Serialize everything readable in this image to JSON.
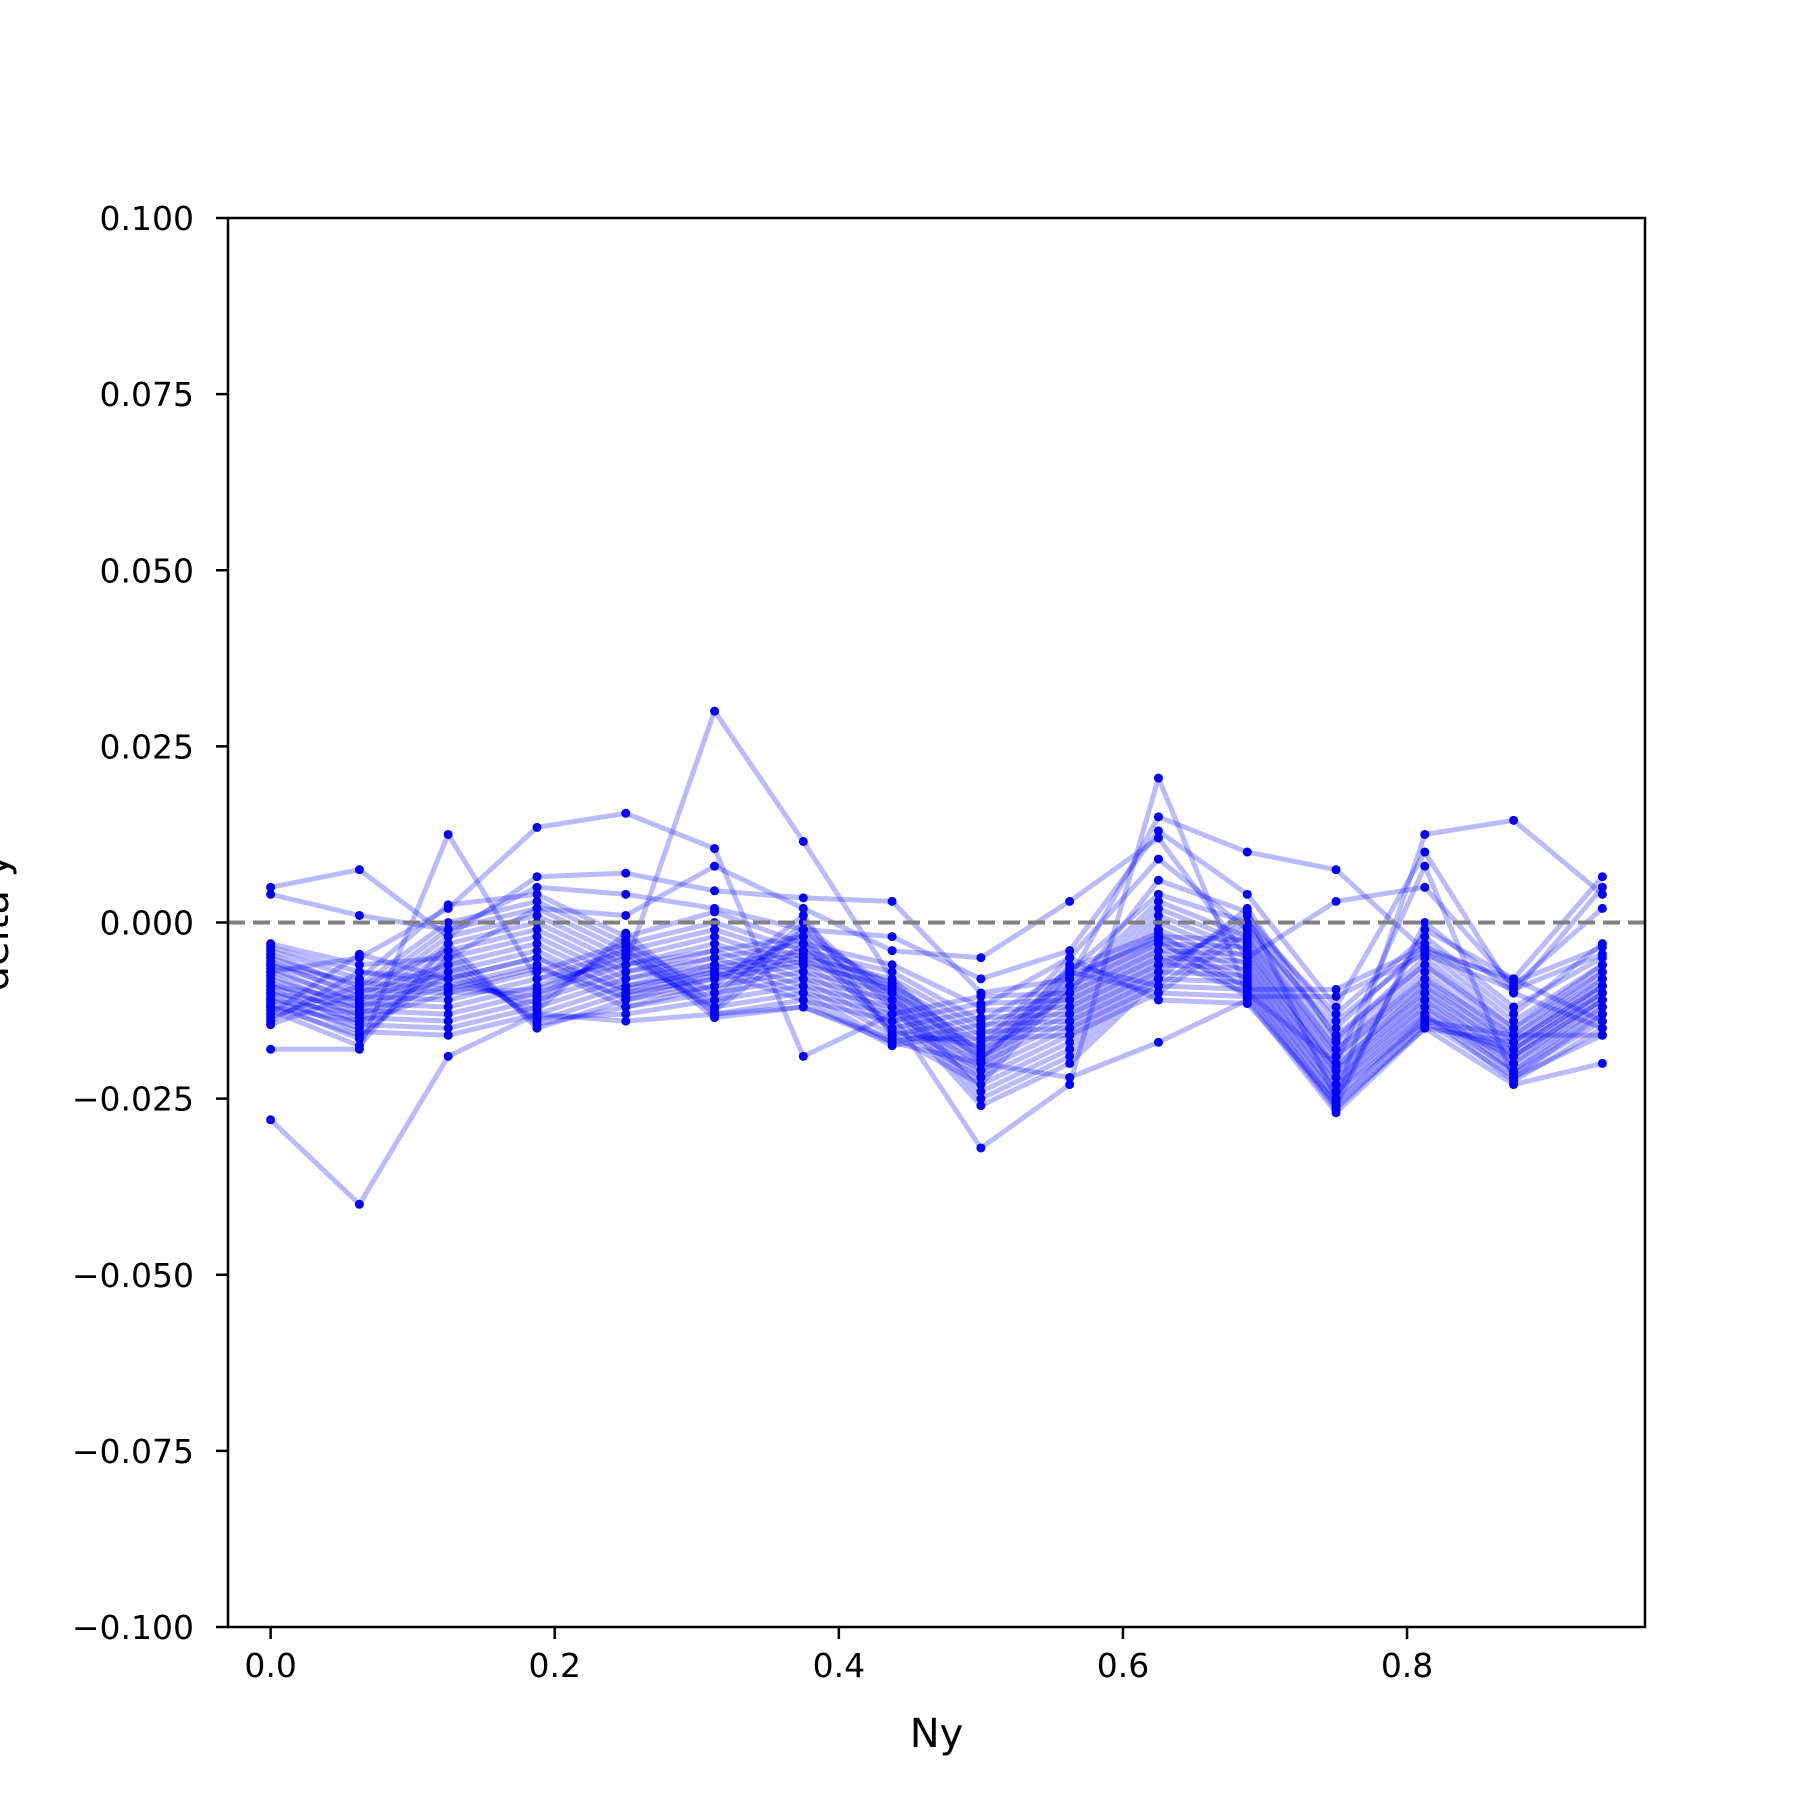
{
  "chart_data": {
    "type": "line",
    "title": "",
    "xlabel": "Ny",
    "ylabel": "delta y",
    "xlim": [
      -0.03,
      0.9675
    ],
    "ylim": [
      -0.1,
      0.1
    ],
    "xticks": [
      0.0,
      0.2,
      0.4,
      0.6,
      0.8
    ],
    "xtick_labels": [
      "0.0",
      "0.2",
      "0.4",
      "0.6",
      "0.8"
    ],
    "yticks": [
      -0.1,
      -0.075,
      -0.05,
      -0.025,
      0.0,
      0.025,
      0.05,
      0.075,
      0.1
    ],
    "ytick_labels": [
      "−0.100",
      "−0.075",
      "−0.050",
      "−0.025",
      "0.000",
      "0.025",
      "0.050",
      "0.075",
      "0.100"
    ],
    "reference_line": {
      "y": 0.0,
      "style": "dashed",
      "color": "#808080"
    },
    "grid": false,
    "legend": "none",
    "line_color": "#0000ff",
    "line_alpha": 0.27,
    "marker_color": "#0000ff",
    "x": [
      0.0,
      0.0625,
      0.125,
      0.1875,
      0.25,
      0.3125,
      0.375,
      0.4375,
      0.5,
      0.5625,
      0.625,
      0.6875,
      0.75,
      0.8125,
      0.875,
      0.9375
    ],
    "series": [
      {
        "values": [
          0.005,
          0.0075,
          -0.002,
          0.0065,
          0.007,
          0.0045,
          0.0035,
          0.003,
          -0.01,
          -0.008,
          0.015,
          0.01,
          0.0075,
          -0.004,
          -0.008,
          0.0065
        ]
      },
      {
        "values": [
          0.004,
          0.001,
          -0.001,
          0.005,
          0.004,
          0.002,
          -0.001,
          -0.002,
          -0.008,
          -0.004,
          0.013,
          0.004,
          -0.012,
          0.01,
          -0.01,
          0.005
        ]
      },
      {
        "values": [
          -0.028,
          -0.04,
          -0.019,
          -0.013,
          -0.014,
          -0.013,
          -0.012,
          -0.017,
          -0.02,
          -0.022,
          -0.017,
          -0.011,
          -0.027,
          -0.015,
          -0.023,
          -0.02
        ]
      },
      {
        "values": [
          -0.018,
          -0.018,
          0.0125,
          -0.008,
          -0.006,
          0.03,
          0.0115,
          -0.008,
          -0.019,
          -0.01,
          0.006,
          0.0015,
          -0.025,
          0.0125,
          0.0145,
          0.004
        ]
      },
      {
        "values": [
          -0.007,
          -0.005,
          0.002,
          0.0135,
          0.0155,
          0.0105,
          -0.019,
          -0.013,
          -0.032,
          -0.023,
          0.0205,
          -0.01,
          -0.02,
          0.008,
          -0.022,
          -0.016
        ]
      },
      {
        "values": [
          -0.003,
          -0.006,
          -0.005,
          0.002,
          0.001,
          0.008,
          0.002,
          -0.004,
          -0.005,
          0.003,
          0.012,
          -0.005,
          0.003,
          0.005,
          -0.009,
          0.002
        ]
      },
      {
        "values": [
          -0.004,
          -0.008,
          0.0025,
          0.004,
          -0.002,
          0.0015,
          -0.003,
          -0.006,
          -0.012,
          -0.005,
          0.009,
          -0.001,
          -0.015,
          -0.003,
          -0.013,
          -0.003
        ]
      },
      {
        "values": [
          -0.005,
          -0.009,
          0.0,
          0.003,
          -0.003,
          0.0,
          -0.004,
          -0.007,
          -0.014,
          -0.007,
          0.004,
          0.0,
          -0.016,
          -0.006,
          -0.015,
          -0.006
        ]
      },
      {
        "values": [
          -0.006,
          -0.01,
          -0.001,
          0.002,
          -0.004,
          -0.001,
          -0.005,
          -0.008,
          -0.015,
          -0.009,
          0.003,
          -0.002,
          -0.018,
          -0.008,
          -0.016,
          -0.007
        ]
      },
      {
        "values": [
          -0.007,
          -0.011,
          -0.002,
          0.001,
          -0.005,
          -0.002,
          -0.006,
          -0.009,
          -0.016,
          -0.01,
          0.002,
          -0.003,
          -0.019,
          -0.009,
          -0.017,
          -0.008
        ]
      },
      {
        "values": [
          -0.008,
          -0.012,
          -0.003,
          0.0,
          -0.006,
          -0.003,
          -0.007,
          -0.01,
          -0.017,
          -0.011,
          0.001,
          -0.004,
          -0.02,
          -0.01,
          -0.018,
          -0.009
        ]
      },
      {
        "values": [
          -0.009,
          -0.013,
          -0.004,
          -0.001,
          -0.007,
          -0.004,
          -0.008,
          -0.011,
          -0.018,
          -0.012,
          0.0,
          -0.005,
          -0.021,
          -0.011,
          -0.019,
          -0.01
        ]
      },
      {
        "values": [
          -0.01,
          -0.014,
          -0.005,
          -0.002,
          -0.008,
          -0.005,
          -0.009,
          -0.012,
          -0.019,
          -0.013,
          -0.001,
          -0.006,
          -0.022,
          -0.012,
          -0.02,
          -0.011
        ]
      },
      {
        "values": [
          -0.011,
          -0.015,
          -0.006,
          -0.003,
          -0.009,
          -0.006,
          -0.01,
          -0.013,
          -0.02,
          -0.014,
          -0.002,
          -0.007,
          -0.023,
          -0.013,
          -0.021,
          -0.012
        ]
      },
      {
        "values": [
          -0.012,
          -0.016,
          -0.007,
          -0.004,
          -0.01,
          -0.007,
          -0.011,
          -0.014,
          -0.021,
          -0.015,
          -0.003,
          -0.008,
          -0.024,
          -0.014,
          -0.022,
          -0.013
        ]
      },
      {
        "values": [
          -0.013,
          -0.0045,
          -0.008,
          -0.005,
          -0.011,
          -0.008,
          -0.002,
          -0.015,
          -0.022,
          -0.016,
          -0.004,
          -0.009,
          -0.025,
          -0.001,
          -0.008,
          -0.014
        ]
      },
      {
        "values": [
          -0.014,
          -0.007,
          -0.009,
          -0.006,
          -0.012,
          -0.009,
          0.001,
          -0.016,
          -0.023,
          -0.017,
          -0.005,
          -0.01,
          -0.026,
          0.0,
          -0.01,
          -0.015
        ]
      },
      {
        "values": [
          -0.0045,
          -0.0095,
          -0.01,
          -0.007,
          -0.003,
          -0.01,
          -0.001,
          -0.01,
          -0.024,
          -0.018,
          -0.006,
          0.0,
          -0.013,
          -0.002,
          -0.012,
          -0.005
        ]
      },
      {
        "values": [
          -0.0055,
          -0.0105,
          -0.011,
          -0.008,
          -0.004,
          -0.011,
          0.0,
          -0.011,
          -0.025,
          -0.019,
          -0.007,
          0.001,
          -0.014,
          -0.004,
          -0.014,
          -0.006
        ]
      },
      {
        "values": [
          -0.0065,
          -0.0115,
          -0.012,
          -0.009,
          -0.005,
          -0.012,
          -0.001,
          -0.012,
          -0.026,
          -0.02,
          -0.008,
          0.002,
          -0.0165,
          -0.005,
          -0.015,
          -0.007
        ]
      },
      {
        "values": [
          -0.0075,
          -0.0125,
          -0.013,
          -0.01,
          -0.006,
          -0.004,
          -0.002,
          -0.009,
          -0.02,
          -0.006,
          -0.009,
          -0.0005,
          -0.017,
          -0.006,
          -0.016,
          -0.008
        ]
      },
      {
        "values": [
          -0.0085,
          -0.0135,
          -0.014,
          -0.011,
          -0.007,
          -0.005,
          -0.003,
          -0.01,
          -0.021,
          -0.007,
          -0.01,
          -0.0015,
          -0.018,
          -0.007,
          -0.017,
          -0.009
        ]
      },
      {
        "values": [
          -0.0095,
          -0.0145,
          -0.015,
          -0.012,
          -0.008,
          -0.006,
          -0.004,
          -0.011,
          -0.022,
          -0.008,
          -0.002,
          -0.0025,
          -0.019,
          -0.008,
          -0.018,
          -0.01
        ]
      },
      {
        "values": [
          -0.0105,
          -0.0155,
          -0.016,
          -0.013,
          -0.009,
          -0.007,
          -0.005,
          -0.012,
          -0.023,
          -0.009,
          -0.003,
          -0.0035,
          -0.0205,
          -0.009,
          -0.019,
          -0.011
        ]
      },
      {
        "values": [
          -0.0115,
          -0.0165,
          -0.005,
          -0.014,
          -0.01,
          -0.008,
          -0.006,
          -0.013,
          -0.0105,
          -0.01,
          -0.004,
          -0.0045,
          -0.021,
          -0.01,
          -0.02,
          -0.012
        ]
      },
      {
        "values": [
          -0.0125,
          -0.0175,
          -0.003,
          -0.015,
          -0.011,
          -0.009,
          -0.007,
          -0.014,
          -0.0115,
          -0.011,
          -0.005,
          -0.0055,
          -0.022,
          -0.011,
          -0.021,
          -0.013
        ]
      },
      {
        "values": [
          -0.0135,
          -0.009,
          -0.004,
          -0.0145,
          -0.012,
          -0.01,
          -0.008,
          -0.015,
          -0.0125,
          -0.012,
          -0.006,
          -0.0065,
          -0.023,
          -0.012,
          -0.0215,
          -0.014
        ]
      },
      {
        "values": [
          -0.0145,
          -0.01,
          -0.006,
          -0.0135,
          -0.013,
          -0.011,
          -0.009,
          -0.016,
          -0.0135,
          -0.013,
          -0.007,
          -0.0075,
          -0.024,
          -0.013,
          -0.0225,
          -0.015
        ]
      },
      {
        "values": [
          -0.009,
          -0.011,
          -0.007,
          -0.0125,
          -0.0015,
          -0.012,
          -0.01,
          -0.017,
          -0.0145,
          -0.014,
          -0.008,
          -0.0085,
          -0.025,
          -0.014,
          -0.016,
          -0.016
        ]
      },
      {
        "values": [
          -0.01,
          -0.012,
          -0.008,
          -0.0115,
          -0.0025,
          -0.013,
          -0.011,
          -0.0175,
          -0.0155,
          -0.015,
          -0.009,
          -0.0095,
          -0.026,
          -0.015,
          -0.017,
          -0.009
        ]
      },
      {
        "values": [
          -0.011,
          -0.013,
          -0.009,
          -0.0105,
          -0.0035,
          -0.0135,
          -0.012,
          -0.0165,
          -0.0165,
          -0.016,
          -0.01,
          -0.0105,
          -0.0265,
          -0.0145,
          -0.018,
          -0.01
        ]
      },
      {
        "values": [
          -0.012,
          -0.014,
          -0.01,
          -0.0095,
          -0.0045,
          -0.0125,
          -0.003,
          -0.0155,
          -0.0175,
          -0.005,
          -0.011,
          -0.0115,
          -0.0255,
          -0.0135,
          -0.019,
          -0.011
        ]
      },
      {
        "values": [
          -0.0035,
          -0.007,
          -0.008,
          -0.005,
          -0.0095,
          -0.0065,
          -0.0045,
          -0.0085,
          -0.0185,
          -0.0065,
          -0.0015,
          -0.0095,
          -0.0095,
          -0.0035,
          -0.0085,
          -0.0035
        ]
      },
      {
        "values": [
          -0.006,
          -0.0085,
          -0.0095,
          -0.0065,
          -0.0105,
          -0.0075,
          -0.0055,
          -0.0095,
          -0.0195,
          -0.0075,
          -0.0025,
          -0.0105,
          -0.0105,
          -0.0045,
          -0.0095,
          -0.0045
        ]
      }
    ]
  }
}
